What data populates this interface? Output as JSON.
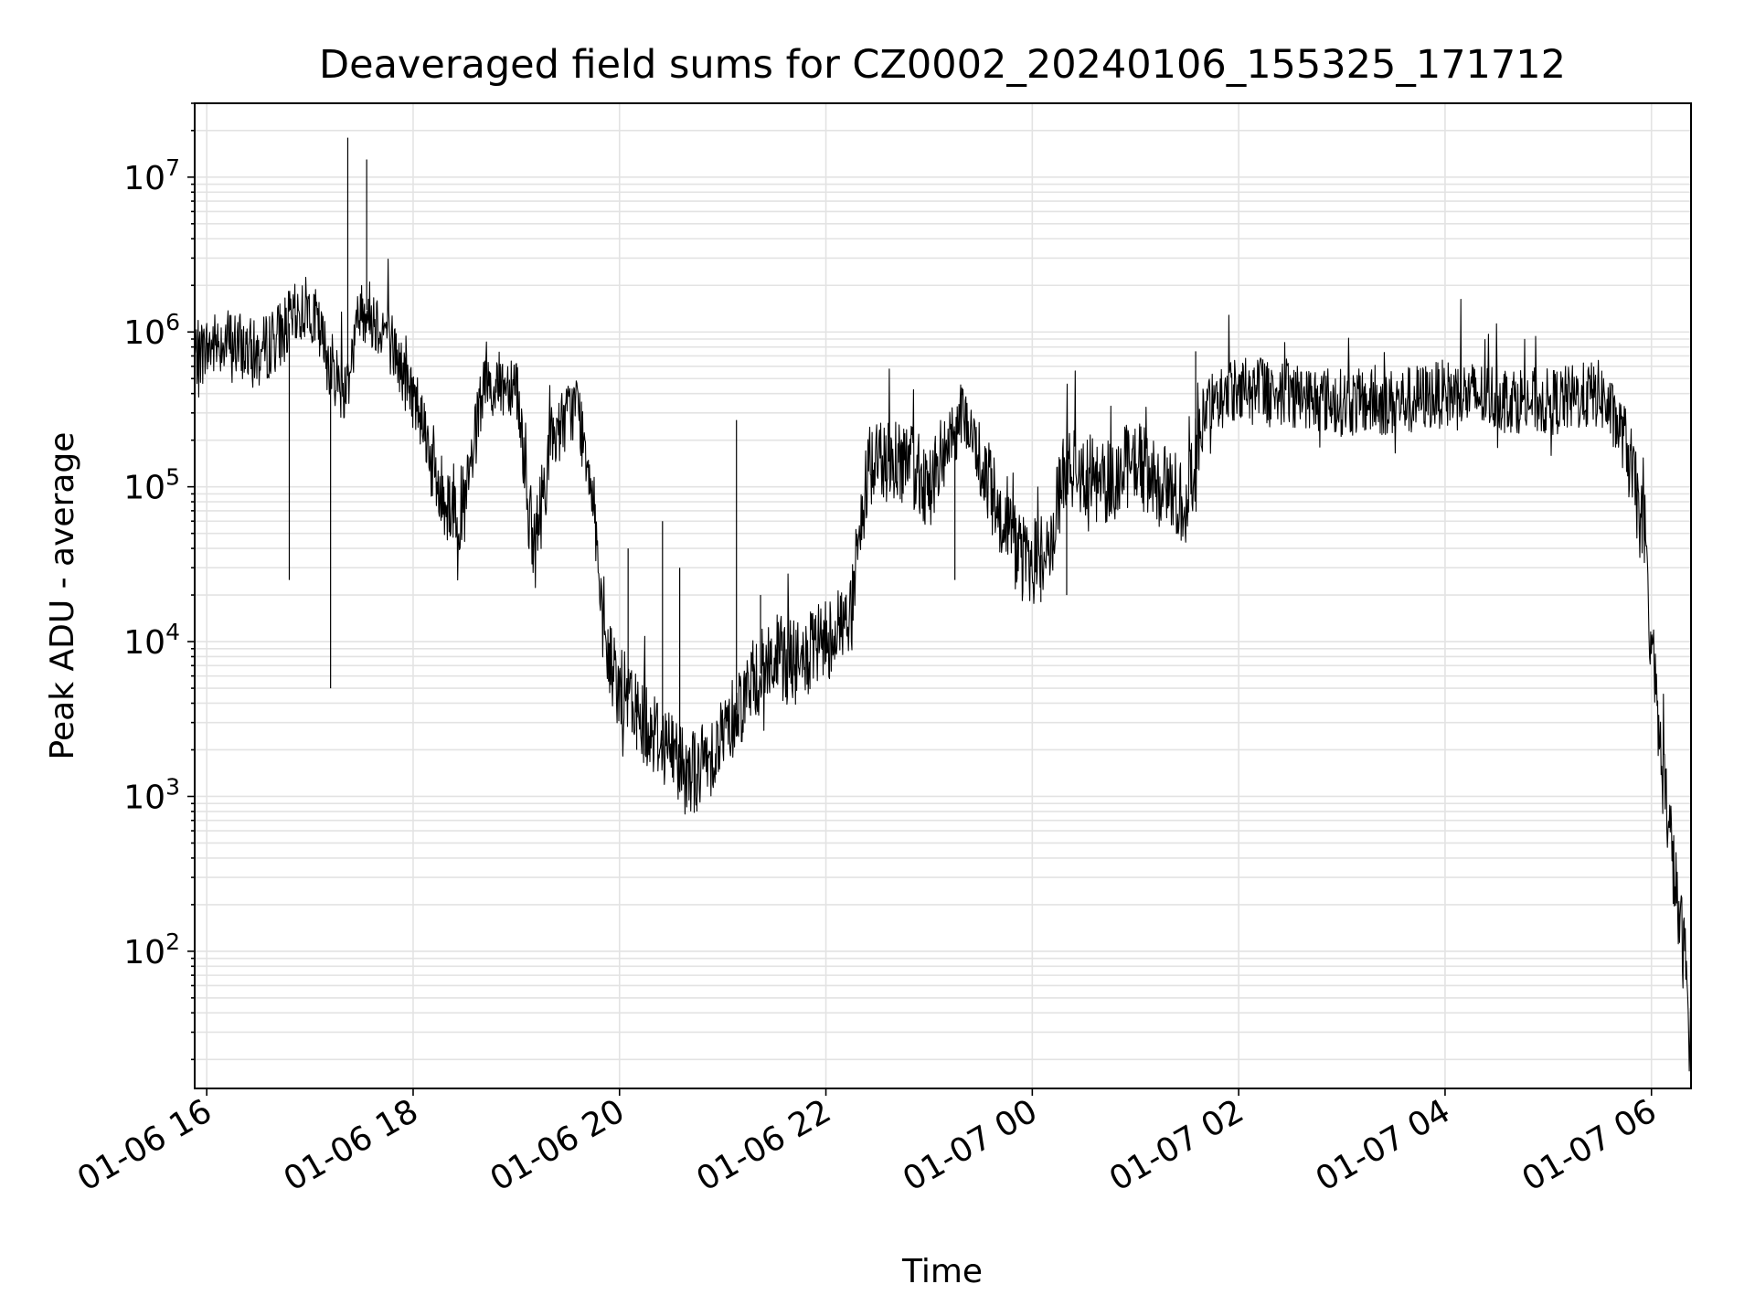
{
  "chart_data": {
    "type": "line",
    "title": "Deaveraged field sums for CZ0002_20240106_155325_171712",
    "xlabel": "Time",
    "ylabel": "Peak ADU - average",
    "yscale": "log",
    "ylim": [
      13,
      30000000
    ],
    "xlim": [
      "2024-01-06 15:53",
      "2024-01-07 06:23"
    ],
    "grid": "major and minor",
    "legend": "none",
    "x_tick_labels": [
      "01-06 16",
      "01-06 18",
      "01-06 20",
      "01-06 22",
      "01-07 00",
      "01-07 02",
      "01-07 04",
      "01-07 06"
    ],
    "y_tick_labels": [
      {
        "base": "10",
        "exp": "2",
        "value": 100
      },
      {
        "base": "10",
        "exp": "3",
        "value": 1000
      },
      {
        "base": "10",
        "exp": "4",
        "value": 10000
      },
      {
        "base": "10",
        "exp": "5",
        "value": 100000
      },
      {
        "base": "10",
        "exp": "6",
        "value": 1000000
      },
      {
        "base": "10",
        "exp": "7",
        "value": 10000000
      }
    ],
    "series": [
      {
        "color": "#000000",
        "points": [
          [
            "2024-01-06 15:53",
            700000
          ],
          [
            "2024-01-06 16:10",
            900000
          ],
          [
            "2024-01-06 16:30",
            700000
          ],
          [
            "2024-01-06 16:50",
            1200000
          ],
          [
            "2024-01-06 17:00",
            1500000
          ],
          [
            "2024-01-06 17:10",
            700000
          ],
          [
            "2024-01-06 17:20",
            400000
          ],
          [
            "2024-01-06 17:30",
            1500000
          ],
          [
            "2024-01-06 17:45",
            1000000
          ],
          [
            "2024-01-06 17:55",
            500000
          ],
          [
            "2024-01-06 18:05",
            300000
          ],
          [
            "2024-01-06 18:15",
            90000
          ],
          [
            "2024-01-06 18:30",
            70000
          ],
          [
            "2024-01-06 18:40",
            400000
          ],
          [
            "2024-01-06 19:00",
            500000
          ],
          [
            "2024-01-06 19:10",
            35000
          ],
          [
            "2024-01-06 19:20",
            200000
          ],
          [
            "2024-01-06 19:35",
            350000
          ],
          [
            "2024-01-06 19:45",
            100000
          ],
          [
            "2024-01-06 19:50",
            10000
          ],
          [
            "2024-01-06 20:00",
            5000
          ],
          [
            "2024-01-06 20:15",
            3000
          ],
          [
            "2024-01-06 20:30",
            2000
          ],
          [
            "2024-01-06 20:45",
            1400
          ],
          [
            "2024-01-06 21:00",
            2500
          ],
          [
            "2024-01-06 21:15",
            5000
          ],
          [
            "2024-01-06 21:30",
            8000
          ],
          [
            "2024-01-06 21:45",
            7000
          ],
          [
            "2024-01-06 22:15",
            15000
          ],
          [
            "2024-01-06 22:25",
            150000
          ],
          [
            "2024-01-06 22:45",
            150000
          ],
          [
            "2024-01-06 23:00",
            100000
          ],
          [
            "2024-01-06 23:20",
            300000
          ],
          [
            "2024-01-06 23:35",
            100000
          ],
          [
            "2024-01-06 23:55",
            30000
          ],
          [
            "2024-01-07 00:10",
            40000
          ],
          [
            "2024-01-07 00:20",
            150000
          ],
          [
            "2024-01-07 00:40",
            100000
          ],
          [
            "2024-01-07 01:00",
            150000
          ],
          [
            "2024-01-07 01:15",
            100000
          ],
          [
            "2024-01-07 01:30",
            80000
          ],
          [
            "2024-01-07 01:40",
            300000
          ],
          [
            "2024-01-07 02:00",
            450000
          ],
          [
            "2024-01-07 02:30",
            400000
          ],
          [
            "2024-01-07 03:00",
            350000
          ],
          [
            "2024-01-07 03:30",
            350000
          ],
          [
            "2024-01-07 04:00",
            400000
          ],
          [
            "2024-01-07 04:30",
            380000
          ],
          [
            "2024-01-07 05:00",
            350000
          ],
          [
            "2024-01-07 05:30",
            400000
          ],
          [
            "2024-01-07 05:45",
            200000
          ],
          [
            "2024-01-07 05:55",
            50000
          ],
          [
            "2024-01-07 06:00",
            10000
          ],
          [
            "2024-01-07 06:05",
            2000
          ],
          [
            "2024-01-07 06:10",
            700
          ],
          [
            "2024-01-07 06:15",
            200
          ],
          [
            "2024-01-07 06:20",
            80
          ],
          [
            "2024-01-07 06:23",
            20
          ]
        ],
        "spikes": [
          [
            "2024-01-06 16:48",
            25000
          ],
          [
            "2024-01-06 17:12",
            5000
          ],
          [
            "2024-01-06 17:22",
            18000000
          ],
          [
            "2024-01-06 17:33",
            13000000
          ],
          [
            "2024-01-06 20:05",
            40000
          ],
          [
            "2024-01-06 20:10",
            2000
          ],
          [
            "2024-01-06 20:25",
            60000
          ],
          [
            "2024-01-06 20:35",
            30000
          ],
          [
            "2024-01-06 20:45",
            800
          ],
          [
            "2024-01-06 21:08",
            270000
          ],
          [
            "2024-01-06 21:22",
            20000
          ],
          [
            "2024-01-06 23:15",
            25000
          ],
          [
            "2024-01-07 00:05",
            18000
          ],
          [
            "2024-01-07 00:20",
            20000
          ],
          [
            "2024-01-07 01:35",
            750000
          ]
        ]
      }
    ]
  }
}
